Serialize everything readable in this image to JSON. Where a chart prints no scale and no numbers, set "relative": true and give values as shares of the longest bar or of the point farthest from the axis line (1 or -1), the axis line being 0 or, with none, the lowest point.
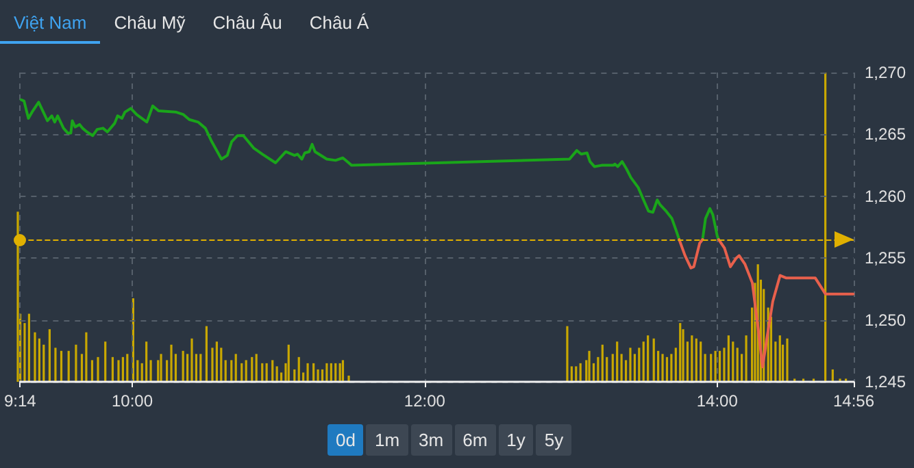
{
  "chart_data": [
    {
      "type": "line",
      "annotations": [
        "Việt Nam",
        "Châu Mỹ",
        "Châu Âu",
        "Châu Á"
      ],
      "xlim": [
        9.2333,
        14.9333
      ],
      "xticks": [
        {
          "value": 9.2333,
          "label": "9:14"
        },
        {
          "value": 10,
          "label": "10:00"
        },
        {
          "value": 12,
          "label": "12:00"
        },
        {
          "value": 14,
          "label": "14:00"
        },
        {
          "value": 14.9333,
          "label": "14:56"
        }
      ],
      "ylim": [
        1245,
        1270
      ],
      "yticks": [
        {
          "value": 1245,
          "label": "1,245"
        },
        {
          "value": 1250,
          "label": "1,250"
        },
        {
          "value": 1255,
          "label": "1,255"
        },
        {
          "value": 1260,
          "label": "1,260"
        },
        {
          "value": 1265,
          "label": "1,265"
        },
        {
          "value": 1270,
          "label": "1,270"
        }
      ],
      "grid": true,
      "marker": "none",
      "line_style": "solid",
      "ref_lines": [
        {
          "axis": "y",
          "value": 1256.5,
          "color": "#e0b000",
          "line_style": "dashed"
        }
      ],
      "series": [
        {
          "color": "#1aa51a",
          "x": [
            9.24,
            9.26,
            9.29,
            9.32,
            9.36,
            9.4,
            9.42,
            9.45,
            9.47,
            9.49,
            9.53,
            9.56,
            9.58,
            9.59,
            9.61,
            9.64,
            9.66,
            9.69,
            9.73,
            9.76,
            9.8,
            9.83,
            9.88,
            9.9,
            9.93,
            9.95,
            9.99,
            10.03,
            10.1,
            10.14,
            10.18,
            10.3,
            10.35,
            10.39,
            10.45,
            10.5,
            10.54,
            10.61,
            10.65,
            10.68,
            10.72,
            10.76,
            10.83,
            10.89,
            10.98,
            11.05,
            11.11,
            11.13,
            11.16,
            11.18,
            11.21,
            11.23,
            11.25,
            11.33,
            11.39,
            11.44,
            11.5,
            12.99,
            13.04,
            13.07,
            13.11,
            13.13,
            13.16,
            13.21,
            13.29,
            13.3,
            13.32,
            13.35,
            13.38,
            13.41,
            13.46,
            13.5,
            13.53,
            13.56,
            13.59,
            13.61,
            13.65,
            13.69,
            13.72,
            13.74,
            13.8,
            13.9,
            13.92,
            13.95,
            13.97,
            14.0,
            14.01
          ],
          "values": [
            1267.8,
            1267.7,
            1266.3,
            1266.9,
            1267.6,
            1266.6,
            1266.1,
            1266.5,
            1266.0,
            1266.5,
            1265.5,
            1265.1,
            1265.1,
            1266.1,
            1265.6,
            1265.8,
            1265.5,
            1265.2,
            1264.9,
            1265.4,
            1265.5,
            1265.2,
            1265.9,
            1266.5,
            1266.3,
            1266.8,
            1267.1,
            1266.6,
            1266.0,
            1267.3,
            1266.9,
            1266.8,
            1266.6,
            1266.2,
            1266.0,
            1265.5,
            1264.5,
            1263.0,
            1263.3,
            1264.4,
            1264.9,
            1264.9,
            1263.9,
            1263.4,
            1262.7,
            1263.6,
            1263.3,
            1263.4,
            1263.0,
            1263.5,
            1263.6,
            1264.2,
            1263.6,
            1263.0,
            1262.9,
            1263.1,
            1262.5,
            1263.0,
            1263.7,
            1263.4,
            1263.5,
            1262.8,
            1262.4,
            1262.5,
            1262.5,
            1262.6,
            1262.4,
            1262.8,
            1262.2,
            1261.5,
            1260.7,
            1259.6,
            1258.8,
            1258.7,
            1259.7,
            1259.3,
            1258.8,
            1258.2,
            1257.2,
            1256.5,
            null,
            1256.5,
            1258.2,
            1259.0,
            1258.5,
            1256.8,
            1256.5
          ]
        },
        {
          "color": "#e8604c",
          "x": [
            13.74,
            13.78,
            13.82,
            13.84,
            13.88,
            13.9,
            13.95,
            14.01,
            14.05,
            14.09,
            14.13,
            14.15,
            14.19,
            14.24,
            14.28,
            14.31,
            14.35,
            14.38,
            14.43,
            14.45,
            14.47,
            14.67,
            14.74,
            14.93
          ],
          "values": [
            1256.5,
            1255.2,
            1254.2,
            1254.3,
            1256.2,
            1256.5,
            null,
            1256.5,
            1255.8,
            1254.3,
            1255.0,
            1255.2,
            1254.5,
            1253.0,
            1249.3,
            1246.2,
            1249.3,
            1251.5,
            1253.6,
            1253.5,
            1253.4,
            1253.4,
            1252.1,
            1252.1
          ]
        }
      ]
    },
    {
      "type": "bar",
      "relative": true,
      "tick_labels": false,
      "annotations": [
        "0d",
        "1m",
        "3m",
        "6m",
        "1y",
        "5y"
      ],
      "xlim": [
        9.2333,
        14.9333
      ],
      "x": [
        9.2333,
        9.25,
        9.28,
        9.31,
        9.35,
        9.38,
        9.41,
        9.45,
        9.49,
        9.53,
        9.58,
        9.63,
        9.67,
        9.7,
        9.74,
        9.78,
        9.83,
        9.88,
        9.92,
        9.95,
        9.98,
        10.02,
        10.05,
        10.08,
        10.11,
        10.14,
        10.19,
        10.21,
        10.25,
        10.28,
        10.31,
        10.36,
        10.39,
        10.42,
        10.45,
        10.48,
        10.52,
        10.56,
        10.59,
        10.62,
        10.65,
        10.69,
        10.72,
        10.76,
        10.79,
        10.83,
        10.86,
        10.9,
        10.93,
        10.97,
        11.0,
        11.03,
        11.06,
        11.08,
        11.12,
        11.15,
        11.18,
        11.21,
        11.25,
        11.28,
        11.31,
        11.34,
        11.37,
        11.4,
        11.43,
        11.45,
        11.49,
        12.98,
        13.01,
        13.04,
        13.07,
        13.11,
        13.13,
        13.16,
        13.19,
        13.22,
        13.25,
        13.29,
        13.32,
        13.35,
        13.38,
        13.41,
        13.44,
        13.47,
        13.5,
        13.53,
        13.57,
        13.6,
        13.63,
        13.66,
        13.69,
        13.72,
        13.75,
        13.77,
        13.8,
        13.83,
        13.86,
        13.89,
        13.92,
        13.96,
        13.99,
        14.02,
        14.05,
        14.08,
        14.11,
        14.14,
        14.17,
        14.2,
        14.24,
        14.26,
        14.28,
        14.3,
        14.32,
        14.35,
        14.37,
        14.4,
        14.43,
        14.45,
        14.48,
        14.53,
        14.59,
        14.66,
        14.74,
        14.79,
        14.84,
        14.88
      ],
      "series": [
        {
          "color": "#c9a800",
          "values": [
            0.55,
            0.22,
            0.19,
            0.22,
            0.16,
            0.14,
            0.12,
            0.17,
            0.11,
            0.1,
            0.1,
            0.12,
            0.09,
            0.16,
            0.07,
            0.08,
            0.13,
            0.08,
            0.07,
            0.08,
            0.09,
            0.27,
            0.07,
            0.06,
            0.13,
            0.07,
            0.07,
            0.09,
            0.07,
            0.12,
            0.09,
            0.1,
            0.09,
            0.14,
            0.09,
            0.09,
            0.18,
            0.11,
            0.13,
            0.11,
            0.07,
            0.07,
            0.09,
            0.06,
            0.07,
            0.08,
            0.09,
            0.06,
            0.06,
            0.07,
            0.05,
            0.03,
            0.06,
            0.12,
            0.04,
            0.08,
            0.03,
            0.06,
            0.06,
            0.04,
            0.04,
            0.06,
            0.06,
            0.06,
            0.06,
            0.07,
            0.02,
            0.18,
            0.05,
            0.05,
            0.06,
            0.07,
            0.1,
            0.06,
            0.08,
            0.12,
            0.08,
            0.09,
            0.13,
            0.09,
            0.07,
            0.11,
            0.09,
            0.11,
            0.13,
            0.15,
            0.14,
            0.1,
            0.09,
            0.08,
            0.09,
            0.11,
            0.19,
            0.17,
            0.13,
            0.15,
            0.14,
            0.13,
            0.09,
            0.09,
            0.1,
            0.1,
            0.11,
            0.15,
            0.13,
            0.11,
            0.09,
            0.15,
            0.24,
            0.32,
            0.38,
            0.33,
            0.3,
            0.24,
            0.21,
            0.13,
            0.15,
            0.12,
            0.14,
            0.01,
            0.01,
            0.01,
            1.0,
            0.04,
            0.01,
            0.01
          ]
        }
      ]
    }
  ]
}
